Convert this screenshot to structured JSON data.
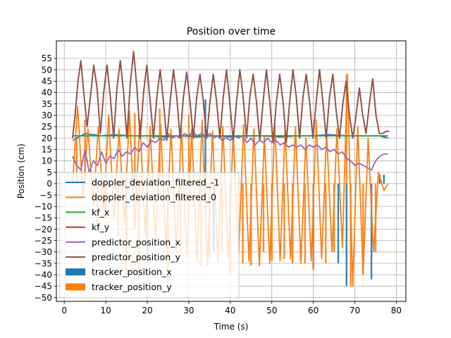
{
  "chart_data": {
    "type": "line",
    "title": "Position over time",
    "xlabel": "Time (s)",
    "ylabel": "Position (cm)",
    "xlim": [
      -1.9,
      82.3
    ],
    "ylim": [
      -51.7,
      62.7
    ],
    "x_ticks": [
      0,
      10,
      20,
      30,
      40,
      50,
      60,
      70,
      80
    ],
    "y_ticks": [
      -50,
      -45,
      -40,
      -35,
      -30,
      -25,
      -20,
      -15,
      -10,
      -5,
      0,
      5,
      10,
      15,
      20,
      25,
      30,
      35,
      40,
      45,
      50,
      55
    ],
    "x_tick_labels": [
      "0",
      "10",
      "20",
      "30",
      "40",
      "50",
      "60",
      "70",
      "80"
    ],
    "y_tick_labels": [
      "−50",
      "−45",
      "−40",
      "−35",
      "−30",
      "−25",
      "−20",
      "−15",
      "−10",
      "−5",
      "0",
      "5",
      "10",
      "15",
      "20",
      "25",
      "30",
      "35",
      "40",
      "45",
      "50",
      "55"
    ],
    "grid": true,
    "legend_placement": "lower-left",
    "series": [
      {
        "name": "doppler_deviation_filtered_-1",
        "kind": "line",
        "color": "#1f77b4",
        "x": [
          2,
          5,
          9,
          12,
          16,
          20,
          24,
          28,
          32,
          36,
          40,
          44,
          48,
          52,
          56,
          60,
          64,
          68,
          72,
          76,
          78
        ],
        "y": [
          19,
          22,
          21,
          21.5,
          21,
          21,
          20.5,
          21,
          20.5,
          21,
          20.5,
          21,
          21,
          20.5,
          21,
          21,
          21.5,
          21,
          21,
          21,
          20
        ]
      },
      {
        "name": "doppler_deviation_filtered_0",
        "kind": "line",
        "color": "#ff7f0e",
        "x": [
          2.0,
          3.2,
          4.5,
          5.7,
          7.0,
          8.2,
          9.5,
          10.7,
          12.0,
          13.2,
          14.5,
          15.7,
          17.0,
          18.2,
          19.5,
          20.7,
          22.0,
          23.2,
          24.5,
          25.7,
          27.0,
          28.2,
          29.5,
          30.7,
          32.0,
          33.2,
          34.5,
          35.7,
          37.0,
          38.2,
          39.5,
          40.7,
          42.0,
          43.2,
          44.5,
          45.7,
          47.0,
          48.2,
          49.5,
          50.7,
          52.0,
          53.2,
          54.5,
          55.7,
          57.0,
          58.2,
          59.5,
          60.7,
          62.0,
          63.2,
          64.5,
          65.7,
          67.0,
          68.2,
          69.5,
          70.7,
          72.0,
          73.2,
          74.5,
          75.7,
          77.0,
          78.0
        ],
        "y": [
          0,
          34,
          -5,
          24,
          -10,
          25,
          -12,
          30,
          -15,
          24,
          -18,
          32,
          -20,
          28,
          -22,
          25,
          -25,
          26,
          -28,
          24,
          -30,
          25,
          -32,
          24,
          -34,
          28,
          -36,
          23,
          -34,
          25,
          -33,
          22,
          -32,
          26,
          -34,
          24,
          -36,
          21,
          -35,
          27,
          -34,
          24,
          -33,
          25,
          -35,
          20,
          -34,
          28,
          -33,
          22,
          -30,
          24,
          -28,
          48,
          -45,
          25,
          -40,
          20,
          -30,
          5,
          -3,
          0
        ]
      },
      {
        "name": "kf_x",
        "kind": "line",
        "color": "#2ca02c",
        "x": [
          2,
          78
        ],
        "y": [
          21,
          21
        ]
      },
      {
        "name": "kf_y",
        "kind": "line",
        "color": "#d62728",
        "x": [
          2,
          2.6,
          3.3,
          4.0,
          4.7,
          5.5,
          6.3,
          7.1,
          7.9,
          8.7,
          9.5,
          10.3,
          11.1,
          11.9,
          12.7,
          13.5,
          14.3,
          15.1,
          15.9,
          16.7,
          17.5,
          18.3,
          19.1,
          19.9,
          20.7,
          21.5,
          22.3,
          23.1,
          23.9,
          24.7,
          25.5,
          26.3,
          27.1,
          27.9,
          28.7,
          29.5,
          30.3,
          31.1,
          31.9,
          32.7,
          33.5,
          34.3,
          35.1,
          35.9,
          36.7,
          37.5,
          38.3,
          39.1,
          39.9,
          40.7,
          41.5,
          42.3,
          43.1,
          43.9,
          44.7,
          45.5,
          46.3,
          47.1,
          47.9,
          48.7,
          49.5,
          50.3,
          51.1,
          51.9,
          52.7,
          53.5,
          54.3,
          55.1,
          55.9,
          56.7,
          57.5,
          58.3,
          59.1,
          59.9,
          60.7,
          61.5,
          62.3,
          63.1,
          63.9,
          64.7,
          65.5,
          66.3,
          67.1,
          67.9,
          68.7,
          69.5,
          70.3,
          71.1,
          71.9,
          72.7,
          73.5,
          74.3,
          75.1,
          75.9,
          76.7,
          77.5,
          78.3
        ],
        "y": [
          20,
          30,
          45,
          54,
          40,
          25,
          38,
          52,
          42,
          22,
          40,
          52,
          38,
          20,
          42,
          54,
          40,
          20,
          44,
          58,
          42,
          20,
          40,
          52,
          36,
          20,
          38,
          50,
          36,
          19,
          36,
          50,
          38,
          20,
          38,
          49,
          36,
          20,
          38,
          48,
          36,
          20,
          36,
          48,
          36,
          20,
          38,
          50,
          35,
          19,
          36,
          50,
          38,
          20,
          38,
          48,
          36,
          19,
          36,
          50,
          36,
          18,
          36,
          48,
          36,
          18,
          36,
          50,
          38,
          20,
          38,
          48,
          36,
          20,
          36,
          50,
          36,
          20,
          38,
          48,
          32,
          20,
          35,
          45,
          30,
          20,
          30,
          42,
          30,
          22,
          35,
          46,
          30,
          22,
          22,
          23,
          23
        ]
      },
      {
        "name": "predictor_position_x",
        "kind": "line",
        "color": "#9467bd",
        "x": [
          2,
          3,
          4,
          5,
          6,
          7,
          8,
          9,
          10,
          11,
          12,
          13,
          14,
          15,
          16,
          17,
          18,
          19,
          20,
          21,
          22,
          23,
          24,
          25,
          26,
          27,
          28,
          29,
          30,
          31,
          32,
          33,
          34,
          35,
          36,
          37,
          38,
          39,
          40,
          41,
          42,
          43,
          44,
          45,
          46,
          47,
          48,
          49,
          50,
          51,
          52,
          53,
          54,
          55,
          56,
          57,
          58,
          59,
          60,
          61,
          62,
          63,
          64,
          65,
          66,
          67,
          68,
          69,
          70,
          71,
          72,
          73,
          74,
          75,
          76,
          77,
          78
        ],
        "y": [
          12,
          8,
          6,
          15,
          5,
          10,
          8,
          14,
          9,
          12,
          11,
          15,
          12,
          14,
          13,
          16,
          14,
          18,
          16,
          19,
          18,
          20,
          19,
          22,
          20,
          21,
          20,
          22,
          21,
          23,
          21,
          22,
          21,
          22,
          20,
          21,
          19,
          20,
          19,
          21,
          20,
          21,
          18,
          20,
          17,
          19,
          18,
          20,
          18,
          19,
          17,
          18,
          16,
          17,
          16,
          17,
          15,
          17,
          16,
          17,
          15,
          16,
          14,
          15,
          13,
          14,
          11,
          10,
          8,
          9,
          8,
          7,
          6,
          10,
          12,
          13,
          13
        ]
      },
      {
        "name": "predictor_position_y",
        "kind": "line",
        "color": "#8c564b",
        "x": [
          2,
          2.6,
          3.3,
          4.0,
          4.7,
          5.5,
          6.3,
          7.1,
          7.9,
          8.7,
          9.5,
          10.3,
          11.1,
          11.9,
          12.7,
          13.5,
          14.3,
          15.1,
          15.9,
          16.7,
          17.5,
          18.3,
          19.1,
          19.9,
          20.7,
          21.5,
          22.3,
          23.1,
          23.9,
          24.7,
          25.5,
          26.3,
          27.1,
          27.9,
          28.7,
          29.5,
          30.3,
          31.1,
          31.9,
          32.7,
          33.5,
          34.3,
          35.1,
          35.9,
          36.7,
          37.5,
          38.3,
          39.1,
          39.9,
          40.7,
          41.5,
          42.3,
          43.1,
          43.9,
          44.7,
          45.5,
          46.3,
          47.1,
          47.9,
          48.7,
          49.5,
          50.3,
          51.1,
          51.9,
          52.7,
          53.5,
          54.3,
          55.1,
          55.9,
          56.7,
          57.5,
          58.3,
          59.1,
          59.9,
          60.7,
          61.5,
          62.3,
          63.1,
          63.9,
          64.7,
          65.5,
          66.3,
          67.1,
          67.9,
          68.7,
          69.5,
          70.3,
          71.1,
          71.9,
          72.7,
          73.5,
          74.3,
          75.1,
          75.9,
          76.7,
          77.5,
          78.3
        ],
        "y": [
          20,
          30,
          45,
          54,
          40,
          25,
          38,
          52,
          42,
          22,
          40,
          52,
          38,
          20,
          42,
          54,
          40,
          20,
          44,
          58,
          42,
          20,
          40,
          52,
          36,
          20,
          38,
          50,
          36,
          19,
          36,
          50,
          38,
          20,
          38,
          49,
          36,
          20,
          38,
          48,
          36,
          20,
          36,
          48,
          36,
          20,
          38,
          50,
          35,
          19,
          36,
          50,
          38,
          20,
          38,
          48,
          36,
          19,
          36,
          50,
          36,
          18,
          36,
          48,
          36,
          18,
          36,
          50,
          38,
          20,
          38,
          48,
          36,
          20,
          36,
          50,
          36,
          20,
          38,
          48,
          32,
          20,
          35,
          45,
          30,
          20,
          30,
          42,
          30,
          22,
          35,
          46,
          30,
          22,
          22,
          23,
          23
        ]
      },
      {
        "name": "tracker_position_x",
        "kind": "bar",
        "color": "#1f77b4",
        "x": [
          15,
          20,
          34,
          36,
          40,
          60,
          66,
          68,
          74,
          76,
          77
        ],
        "y": [
          -35,
          -32,
          37,
          -30,
          -25,
          -37,
          -35,
          -45,
          -42,
          4,
          4
        ]
      },
      {
        "name": "tracker_position_y",
        "kind": "bar",
        "color": "#ff7f0e",
        "x": [
          3,
          5,
          8,
          10,
          13,
          15,
          17,
          18,
          20,
          23,
          25,
          28,
          30,
          33,
          35,
          38,
          40,
          43,
          45,
          48,
          50,
          53,
          55,
          58,
          60,
          63,
          65,
          68,
          69,
          72,
          75
        ],
        "y": [
          20,
          28,
          -20,
          -15,
          -23,
          -40,
          31,
          -42,
          -35,
          33,
          -44,
          -30,
          30,
          -36,
          -33,
          -30,
          -40,
          -35,
          -36,
          -30,
          -34,
          -33,
          -35,
          -35,
          -38,
          -35,
          -30,
          48,
          -45,
          -40,
          -30
        ]
      }
    ]
  }
}
